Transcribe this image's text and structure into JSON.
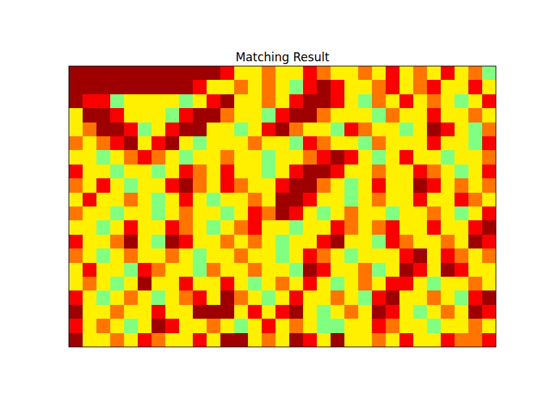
{
  "chart_data": {
    "type": "heatmap",
    "title": "Matching Result",
    "tick_labels": false,
    "zlim": [
      0,
      1
    ],
    "cells": [
      [
        0.97,
        0.97,
        0.97,
        0.97,
        0.97,
        0.97,
        0.97,
        0.97,
        0.97,
        0.97,
        0.97,
        0.88,
        0.64,
        0.64,
        0.76,
        0.64,
        0.64,
        0.88,
        0.76,
        0.64,
        0.64,
        0.76,
        0.64,
        0.88,
        0.64,
        0.76,
        0.64,
        0.88,
        0.64,
        0.76,
        0.5
      ],
      [
        0.97,
        0.97,
        0.97,
        0.97,
        0.97,
        0.97,
        0.97,
        0.97,
        0.97,
        0.88,
        0.64,
        0.64,
        0.76,
        0.64,
        0.76,
        0.64,
        0.5,
        0.88,
        0.97,
        0.88,
        0.64,
        0.64,
        0.76,
        0.88,
        0.64,
        0.76,
        0.88,
        0.64,
        0.64,
        0.88,
        0.64
      ],
      [
        0.97,
        0.88,
        0.88,
        0.5,
        0.64,
        0.64,
        0.64,
        0.64,
        0.5,
        0.64,
        0.88,
        0.97,
        0.64,
        0.64,
        0.76,
        0.64,
        0.88,
        0.97,
        0.97,
        0.88,
        0.64,
        0.5,
        0.76,
        0.64,
        0.88,
        0.64,
        0.76,
        0.64,
        0.5,
        0.64,
        0.88
      ],
      [
        0.64,
        0.97,
        0.97,
        0.88,
        0.64,
        0.64,
        0.64,
        0.5,
        0.88,
        0.97,
        0.97,
        0.76,
        0.64,
        0.64,
        0.5,
        0.88,
        0.97,
        0.97,
        0.76,
        0.64,
        0.64,
        0.64,
        0.5,
        0.76,
        0.64,
        0.64,
        0.88,
        0.64,
        0.64,
        0.76,
        0.64
      ],
      [
        0.64,
        0.76,
        0.97,
        0.97,
        0.88,
        0.5,
        0.64,
        0.88,
        0.97,
        0.97,
        0.64,
        0.64,
        0.5,
        0.64,
        0.88,
        0.97,
        0.76,
        0.64,
        0.64,
        0.5,
        0.88,
        0.76,
        0.64,
        0.64,
        0.5,
        0.64,
        0.97,
        0.88,
        0.64,
        0.5,
        0.76
      ],
      [
        0.76,
        0.64,
        0.76,
        0.88,
        0.97,
        0.64,
        0.88,
        0.97,
        0.64,
        0.5,
        0.64,
        0.64,
        0.64,
        0.76,
        0.64,
        0.64,
        0.5,
        0.88,
        0.76,
        0.64,
        0.64,
        0.5,
        0.76,
        0.64,
        0.64,
        0.64,
        0.88,
        0.64,
        0.64,
        0.5,
        0.88
      ],
      [
        0.64,
        0.64,
        0.5,
        0.64,
        0.76,
        0.88,
        0.76,
        0.64,
        0.5,
        0.64,
        0.64,
        0.76,
        0.64,
        0.64,
        0.5,
        0.64,
        0.64,
        0.76,
        0.88,
        0.97,
        0.88,
        0.64,
        0.5,
        0.64,
        0.88,
        0.64,
        0.64,
        0.5,
        0.64,
        0.64,
        0.76
      ],
      [
        0.88,
        0.64,
        0.64,
        0.5,
        0.64,
        0.64,
        0.5,
        0.64,
        0.88,
        0.76,
        0.64,
        0.88,
        0.64,
        0.64,
        0.5,
        0.64,
        0.88,
        0.97,
        0.97,
        0.88,
        0.64,
        0.64,
        0.76,
        0.64,
        0.64,
        0.88,
        0.76,
        0.64,
        0.5,
        0.64,
        0.88
      ],
      [
        0.76,
        0.64,
        0.88,
        0.64,
        0.5,
        0.64,
        0.64,
        0.88,
        0.97,
        0.76,
        0.64,
        0.88,
        0.76,
        0.64,
        0.64,
        0.88,
        0.97,
        0.97,
        0.76,
        0.64,
        0.5,
        0.64,
        0.88,
        0.64,
        0.64,
        0.97,
        0.88,
        0.64,
        0.76,
        0.64,
        0.76
      ],
      [
        0.64,
        0.88,
        0.64,
        0.64,
        0.76,
        0.64,
        0.5,
        0.64,
        0.88,
        0.64,
        0.5,
        0.64,
        0.64,
        0.76,
        0.64,
        0.97,
        0.97,
        0.88,
        0.64,
        0.64,
        0.5,
        0.64,
        0.76,
        0.64,
        0.64,
        0.88,
        0.64,
        0.64,
        0.88,
        0.76,
        0.64
      ],
      [
        0.76,
        0.64,
        0.64,
        0.5,
        0.64,
        0.64,
        0.5,
        0.64,
        0.76,
        0.64,
        0.64,
        0.5,
        0.64,
        0.88,
        0.76,
        0.97,
        0.88,
        0.64,
        0.5,
        0.64,
        0.76,
        0.64,
        0.64,
        0.5,
        0.64,
        0.64,
        0.76,
        0.64,
        0.5,
        0.64,
        0.88
      ],
      [
        0.64,
        0.64,
        0.5,
        0.64,
        0.88,
        0.64,
        0.64,
        0.88,
        0.76,
        0.64,
        0.5,
        0.64,
        0.76,
        0.88,
        0.64,
        0.64,
        0.5,
        0.64,
        0.64,
        0.88,
        0.76,
        0.64,
        0.76,
        0.88,
        0.64,
        0.64,
        0.88,
        0.64,
        0.64,
        0.88,
        0.97
      ],
      [
        0.88,
        0.64,
        0.64,
        0.76,
        0.97,
        0.64,
        0.5,
        0.97,
        0.88,
        0.64,
        0.64,
        0.76,
        0.64,
        0.76,
        0.64,
        0.5,
        0.64,
        0.64,
        0.88,
        0.97,
        0.64,
        0.64,
        0.5,
        0.88,
        0.76,
        0.64,
        0.64,
        0.76,
        0.64,
        0.97,
        0.88
      ],
      [
        0.76,
        0.64,
        0.5,
        0.64,
        0.76,
        0.64,
        0.64,
        0.76,
        0.64,
        0.5,
        0.64,
        0.64,
        0.76,
        0.64,
        0.64,
        0.5,
        0.64,
        0.88,
        0.76,
        0.64,
        0.5,
        0.64,
        0.64,
        0.64,
        0.88,
        0.97,
        0.64,
        0.88,
        0.76,
        0.64,
        0.76
      ],
      [
        0.64,
        0.88,
        0.64,
        0.64,
        0.5,
        0.88,
        0.76,
        0.64,
        0.64,
        0.5,
        0.76,
        0.64,
        0.64,
        0.76,
        0.64,
        0.64,
        0.5,
        0.97,
        0.88,
        0.64,
        0.64,
        0.76,
        0.5,
        0.64,
        0.97,
        0.88,
        0.64,
        0.97,
        0.88,
        0.64,
        0.64
      ],
      [
        0.64,
        0.76,
        0.64,
        0.5,
        0.64,
        0.97,
        0.64,
        0.64,
        0.88,
        0.64,
        0.64,
        0.88,
        0.64,
        0.5,
        0.64,
        0.76,
        0.64,
        0.88,
        0.64,
        0.5,
        0.64,
        0.76,
        0.64,
        0.88,
        0.88,
        0.64,
        0.5,
        0.64,
        0.64,
        0.76,
        0.64
      ],
      [
        0.88,
        0.64,
        0.5,
        0.64,
        0.76,
        0.64,
        0.5,
        0.64,
        0.76,
        0.88,
        0.64,
        0.97,
        0.76,
        0.64,
        0.5,
        0.64,
        0.88,
        0.64,
        0.64,
        0.76,
        0.64,
        0.5,
        0.88,
        0.97,
        0.64,
        0.64,
        0.76,
        0.64,
        0.5,
        0.88,
        0.97
      ],
      [
        0.97,
        0.64,
        0.64,
        0.76,
        0.64,
        0.64,
        0.88,
        0.64,
        0.64,
        0.97,
        0.97,
        0.97,
        0.64,
        0.88,
        0.64,
        0.88,
        0.97,
        0.64,
        0.5,
        0.64,
        0.76,
        0.64,
        0.97,
        0.88,
        0.64,
        0.5,
        0.64,
        0.76,
        0.64,
        0.97,
        0.88
      ],
      [
        0.88,
        0.64,
        0.76,
        0.64,
        0.5,
        0.64,
        0.97,
        0.88,
        0.64,
        0.64,
        0.76,
        0.64,
        0.5,
        0.64,
        0.88,
        0.64,
        0.76,
        0.64,
        0.5,
        0.5,
        0.64,
        0.64,
        0.88,
        0.76,
        0.64,
        0.64,
        0.5,
        0.64,
        0.64,
        0.76,
        0.64
      ],
      [
        0.97,
        0.64,
        0.64,
        0.76,
        0.64,
        0.88,
        0.76,
        0.64,
        0.64,
        0.88,
        0.64,
        0.97,
        0.97,
        0.64,
        0.76,
        0.64,
        0.97,
        0.88,
        0.64,
        0.97,
        0.64,
        0.64,
        0.76,
        0.64,
        0.88,
        0.64,
        0.64,
        0.88,
        0.76,
        0.76,
        0.88
      ]
    ]
  }
}
